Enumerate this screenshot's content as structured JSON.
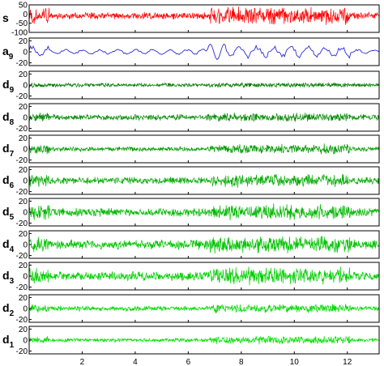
{
  "chart_data": {
    "type": "line",
    "xlim": [
      0,
      13.2
    ],
    "xticks": [
      "2",
      "4",
      "6",
      "8",
      "10",
      "12"
    ],
    "xtick_values": [
      2,
      4,
      6,
      8,
      10,
      12
    ],
    "grid": false,
    "panels": [
      {
        "label_main": "s",
        "label_sub": "",
        "color": "#ff0000",
        "ylim": [
          -100,
          50
        ],
        "yticks": [
          "50",
          "0",
          "-50",
          "-100"
        ],
        "ytick_values": [
          50,
          0,
          -50,
          -100
        ],
        "base_amp": 22,
        "burst_amp": 55,
        "mean": -10,
        "kind": "noise"
      },
      {
        "label_main": "a",
        "label_sub": "9",
        "color": "#2b2bd9",
        "ylim": [
          -25,
          25
        ],
        "yticks": [
          "20",
          "0",
          "-20"
        ],
        "ytick_values": [
          20,
          0,
          -20
        ],
        "base_amp": 6,
        "burst_amp": 14,
        "mean": 0,
        "kind": "smooth"
      },
      {
        "label_main": "d",
        "label_sub": "9",
        "color": "#007a00",
        "ylim": [
          -25,
          25
        ],
        "yticks": [
          "20",
          "0",
          "-20"
        ],
        "ytick_values": [
          20,
          0,
          -20
        ],
        "base_amp": 4,
        "burst_amp": 5,
        "mean": 0,
        "kind": "noise"
      },
      {
        "label_main": "d",
        "label_sub": "8",
        "color": "#008a00",
        "ylim": [
          -25,
          25
        ],
        "yticks": [
          "20",
          "0",
          "-20"
        ],
        "ytick_values": [
          20,
          0,
          -20
        ],
        "base_amp": 6,
        "burst_amp": 9,
        "mean": 0,
        "kind": "noise"
      },
      {
        "label_main": "d",
        "label_sub": "7",
        "color": "#009a00",
        "ylim": [
          -25,
          25
        ],
        "yticks": [
          "20",
          "0",
          "-20"
        ],
        "ytick_values": [
          20,
          0,
          -20
        ],
        "base_amp": 5,
        "burst_amp": 10,
        "mean": 0,
        "kind": "noise"
      },
      {
        "label_main": "d",
        "label_sub": "6",
        "color": "#00aa00",
        "ylim": [
          -25,
          25
        ],
        "yticks": [
          "20",
          "0",
          "-20"
        ],
        "ytick_values": [
          20,
          0,
          -20
        ],
        "base_amp": 7,
        "burst_amp": 13,
        "mean": 0,
        "kind": "noise"
      },
      {
        "label_main": "d",
        "label_sub": "5",
        "color": "#00b800",
        "ylim": [
          -25,
          25
        ],
        "yticks": [
          "20",
          "0",
          "-20"
        ],
        "ytick_values": [
          20,
          0,
          -20
        ],
        "base_amp": 9,
        "burst_amp": 16,
        "mean": 0,
        "kind": "noise"
      },
      {
        "label_main": "d",
        "label_sub": "4",
        "color": "#00c400",
        "ylim": [
          -25,
          25
        ],
        "yticks": [
          "20",
          "0",
          "-20"
        ],
        "ytick_values": [
          20,
          0,
          -20
        ],
        "base_amp": 10,
        "burst_amp": 17,
        "mean": 0,
        "kind": "noise"
      },
      {
        "label_main": "d",
        "label_sub": "3",
        "color": "#00cf00",
        "ylim": [
          -25,
          25
        ],
        "yticks": [
          "20",
          "0",
          "-20"
        ],
        "ytick_values": [
          20,
          0,
          -20
        ],
        "base_amp": 9,
        "burst_amp": 18,
        "mean": 0,
        "kind": "noise"
      },
      {
        "label_main": "d",
        "label_sub": "2",
        "color": "#00d800",
        "ylim": [
          -25,
          25
        ],
        "yticks": [
          "20",
          "0",
          "-20"
        ],
        "ytick_values": [
          20,
          0,
          -20
        ],
        "base_amp": 5,
        "burst_amp": 9,
        "mean": 0,
        "kind": "noise"
      },
      {
        "label_main": "d",
        "label_sub": "1",
        "color": "#00e000",
        "ylim": [
          -25,
          25
        ],
        "yticks": [
          "20",
          "0",
          "-20"
        ],
        "ytick_values": [
          20,
          0,
          -20
        ],
        "base_amp": 4,
        "burst_amp": 8,
        "mean": 0,
        "kind": "noise"
      }
    ],
    "bursts": [
      [
        0,
        0.75
      ],
      [
        6.8,
        12.1
      ]
    ]
  }
}
